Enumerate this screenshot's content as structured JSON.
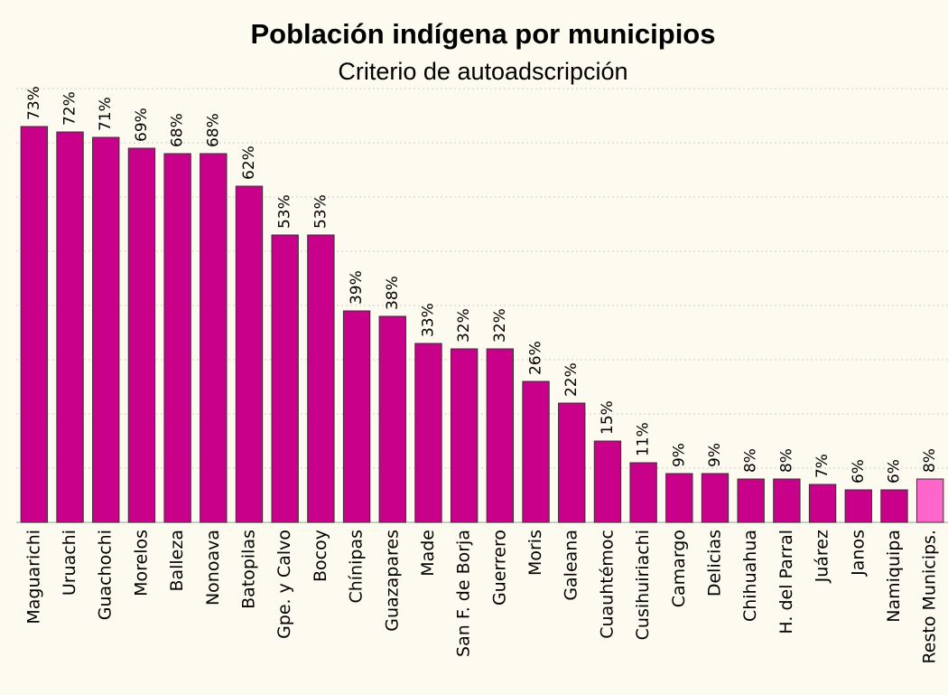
{
  "chart_data": {
    "type": "bar",
    "title": "Población indígena por municipios",
    "subtitle": "Criterio de autoadscripción",
    "categories": [
      "Maguarichi",
      "Uruachi",
      "Guachochi",
      "Morelos",
      "Balleza",
      "Nonoava",
      "Batopilas",
      "Gpe. y Calvo",
      "Bocoy",
      "Chínipas",
      "Guazapares",
      "Made",
      "San F. de Borja",
      "Guerrero",
      "Moris",
      "Galeana",
      "Cuauhtémoc",
      "Cusihuiriachi",
      "Camargo",
      "Delicias",
      "Chihuahua",
      "H. del Parral",
      "Juárez",
      "Janos",
      "Namiquipa",
      "Resto Municips."
    ],
    "values": [
      73,
      72,
      71,
      69,
      68,
      68,
      62,
      53,
      53,
      39,
      38,
      33,
      32,
      32,
      26,
      22,
      15,
      11,
      9,
      9,
      8,
      8,
      7,
      6,
      6,
      8
    ],
    "value_labels": [
      "73%",
      "72%",
      "71%",
      "69%",
      "68%",
      "68%",
      "62%",
      "53%",
      "53%",
      "39%",
      "38%",
      "33%",
      "32%",
      "32%",
      "26%",
      "22%",
      "15%",
      "11%",
      "9%",
      "9%",
      "8%",
      "8%",
      "7%",
      "6%",
      "6%",
      "8%"
    ],
    "colors": [
      "#c8008a",
      "#c8008a",
      "#c8008a",
      "#c8008a",
      "#c8008a",
      "#c8008a",
      "#c8008a",
      "#c8008a",
      "#c8008a",
      "#c8008a",
      "#c8008a",
      "#c8008a",
      "#c8008a",
      "#c8008a",
      "#c8008a",
      "#c8008a",
      "#c8008a",
      "#c8008a",
      "#c8008a",
      "#c8008a",
      "#c8008a",
      "#c8008a",
      "#c8008a",
      "#c8008a",
      "#c8008a",
      "#ff66cc"
    ],
    "ylim": [
      0,
      80
    ],
    "yticks": [
      10,
      20,
      30,
      40,
      50,
      60,
      70,
      80
    ],
    "grid": true
  }
}
